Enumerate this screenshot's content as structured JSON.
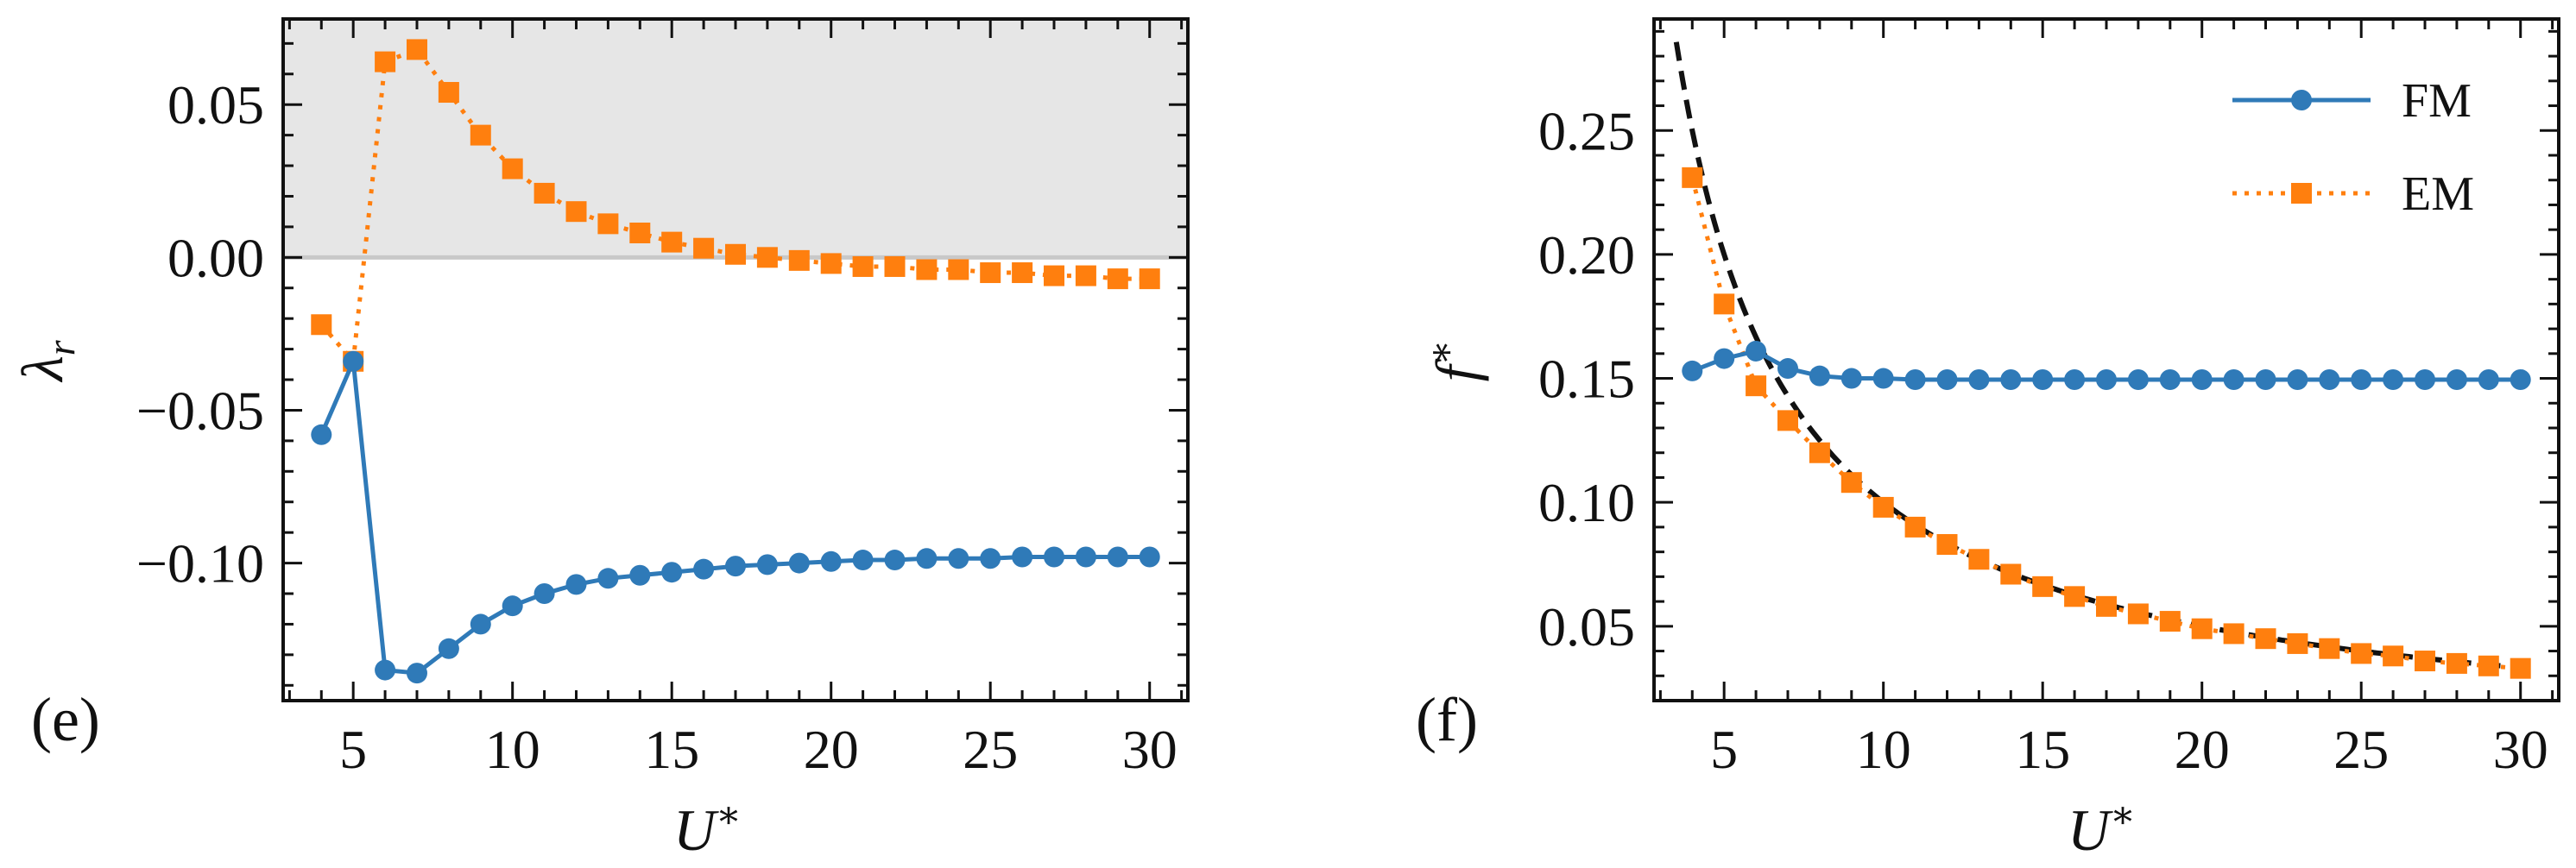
{
  "colors": {
    "fm": "#2f7ab8",
    "em": "#ff7f0e",
    "fit": "#111111",
    "shade": "#e6e6e6"
  },
  "chart_data": [
    {
      "type": "line",
      "panel_label": "(e)",
      "xlabel": "U*",
      "ylabel": "λr",
      "xlim": [
        2.8,
        31.2
      ],
      "ylim": [
        -0.145,
        0.078
      ],
      "xticks": [
        5,
        10,
        15,
        20,
        25,
        30
      ],
      "xtick_labels": [
        "5",
        "10",
        "15",
        "20",
        "25",
        "30"
      ],
      "yticks": [
        -0.1,
        -0.05,
        0.0,
        0.05
      ],
      "ytick_labels": [
        "−0.10",
        "−0.05",
        "0.00",
        "0.05"
      ],
      "shaded_region": "y > 0",
      "series": [
        {
          "name": "FM",
          "marker": "circle",
          "linestyle": "solid",
          "x": [
            4,
            5,
            6,
            7,
            8,
            9,
            10,
            11,
            12,
            13,
            14,
            15,
            16,
            17,
            18,
            19,
            20,
            21,
            22,
            23,
            24,
            25,
            26,
            27,
            28,
            29,
            30
          ],
          "y": [
            -0.058,
            -0.034,
            -0.135,
            -0.136,
            -0.128,
            -0.12,
            -0.114,
            -0.11,
            -0.107,
            -0.105,
            -0.104,
            -0.103,
            -0.102,
            -0.101,
            -0.1005,
            -0.1,
            -0.0995,
            -0.099,
            -0.099,
            -0.0985,
            -0.0985,
            -0.0985,
            -0.098,
            -0.098,
            -0.098,
            -0.098,
            -0.098
          ]
        },
        {
          "name": "EM",
          "marker": "square",
          "linestyle": "dotted",
          "x": [
            4,
            5,
            6,
            7,
            8,
            9,
            10,
            11,
            12,
            13,
            14,
            15,
            16,
            17,
            18,
            19,
            20,
            21,
            22,
            23,
            24,
            25,
            26,
            27,
            28,
            29,
            30
          ],
          "y": [
            -0.022,
            -0.034,
            0.064,
            0.068,
            0.054,
            0.04,
            0.029,
            0.021,
            0.015,
            0.011,
            0.008,
            0.005,
            0.003,
            0.001,
            0.0,
            -0.001,
            -0.002,
            -0.003,
            -0.003,
            -0.004,
            -0.004,
            -0.005,
            -0.005,
            -0.006,
            -0.006,
            -0.007,
            -0.007
          ]
        }
      ]
    },
    {
      "type": "line",
      "panel_label": "(f)",
      "xlabel": "U*",
      "ylabel": "f*",
      "xlim": [
        2.8,
        31.2
      ],
      "ylim": [
        0.02,
        0.295
      ],
      "xticks": [
        5,
        10,
        15,
        20,
        25,
        30
      ],
      "xtick_labels": [
        "5",
        "10",
        "15",
        "20",
        "25",
        "30"
      ],
      "yticks": [
        0.05,
        0.1,
        0.15,
        0.2,
        0.25
      ],
      "ytick_labels": [
        "0.05",
        "0.10",
        "0.15",
        "0.20",
        "0.25"
      ],
      "legend": {
        "position": "top-right",
        "entries": [
          "FM",
          "EM"
        ]
      },
      "fit_curve": {
        "formula": "f* = 1/U*",
        "x_range": [
          3.5,
          30.5
        ],
        "linestyle": "dashed"
      },
      "series": [
        {
          "name": "FM",
          "marker": "circle",
          "linestyle": "solid",
          "x": [
            4,
            5,
            6,
            7,
            8,
            9,
            10,
            11,
            12,
            13,
            14,
            15,
            16,
            17,
            18,
            19,
            20,
            21,
            22,
            23,
            24,
            25,
            26,
            27,
            28,
            29,
            30
          ],
          "y": [
            0.153,
            0.158,
            0.161,
            0.154,
            0.151,
            0.15,
            0.15,
            0.1495,
            0.1495,
            0.1495,
            0.1495,
            0.1495,
            0.1495,
            0.1495,
            0.1495,
            0.1495,
            0.1495,
            0.1495,
            0.1495,
            0.1495,
            0.1495,
            0.1495,
            0.1495,
            0.1495,
            0.1495,
            0.1495,
            0.1495
          ]
        },
        {
          "name": "EM",
          "marker": "square",
          "linestyle": "dotted",
          "x": [
            4,
            5,
            6,
            7,
            8,
            9,
            10,
            11,
            12,
            13,
            14,
            15,
            16,
            17,
            18,
            19,
            20,
            21,
            22,
            23,
            24,
            25,
            26,
            27,
            28,
            29,
            30
          ],
          "y": [
            0.231,
            0.18,
            0.147,
            0.133,
            0.12,
            0.108,
            0.098,
            0.09,
            0.083,
            0.077,
            0.071,
            0.066,
            0.062,
            0.058,
            0.055,
            0.052,
            0.049,
            0.047,
            0.045,
            0.043,
            0.041,
            0.039,
            0.038,
            0.036,
            0.035,
            0.034,
            0.033
          ]
        }
      ]
    }
  ]
}
